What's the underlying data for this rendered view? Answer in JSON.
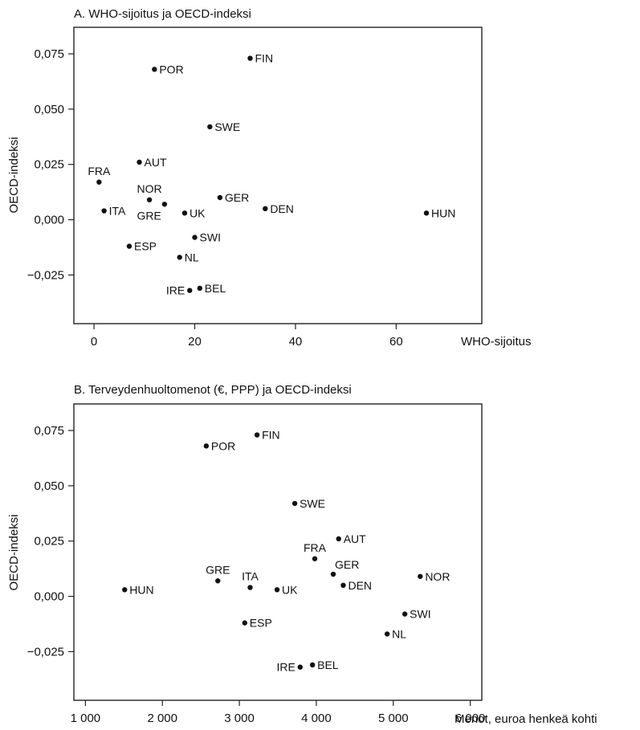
{
  "chart_data": [
    {
      "type": "scatter",
      "title": "A. WHO-sijoitus ja OECD-indeksi",
      "xlabel": "WHO-sijoitus",
      "ylabel": "OECD-indeksi",
      "xlim": [
        -4,
        77
      ],
      "ylim": [
        -0.047,
        0.087
      ],
      "x_ticks": [
        "0",
        "20",
        "40",
        "60"
      ],
      "x_tick_values": [
        0,
        20,
        40,
        60
      ],
      "y_ticks": [
        "0,075",
        "0,050",
        "0,025",
        "0,000",
        "−0,025"
      ],
      "y_tick_values": [
        0.075,
        0.05,
        0.025,
        0,
        -0.025
      ],
      "points": [
        {
          "label": "FIN",
          "x": 31,
          "y": 0.073,
          "anchor": "right"
        },
        {
          "label": "POR",
          "x": 12,
          "y": 0.068,
          "anchor": "right"
        },
        {
          "label": "SWE",
          "x": 23,
          "y": 0.042,
          "anchor": "right"
        },
        {
          "label": "AUT",
          "x": 9,
          "y": 0.026,
          "anchor": "right"
        },
        {
          "label": "FRA",
          "x": 1,
          "y": 0.017,
          "anchor": "above"
        },
        {
          "label": "NOR",
          "x": 11,
          "y": 0.009,
          "anchor": "above"
        },
        {
          "label": "GER",
          "x": 25,
          "y": 0.01,
          "anchor": "right"
        },
        {
          "label": "GRE",
          "x": 14,
          "y": 0.007,
          "anchor": "below-left"
        },
        {
          "label": "UK",
          "x": 18,
          "y": 0.003,
          "anchor": "right"
        },
        {
          "label": "DEN",
          "x": 34,
          "y": 0.005,
          "anchor": "right"
        },
        {
          "label": "ITA",
          "x": 2,
          "y": 0.004,
          "anchor": "right"
        },
        {
          "label": "HUN",
          "x": 66,
          "y": 0.003,
          "anchor": "right"
        },
        {
          "label": "SWI",
          "x": 20,
          "y": -0.008,
          "anchor": "right"
        },
        {
          "label": "ESP",
          "x": 7,
          "y": -0.012,
          "anchor": "right"
        },
        {
          "label": "NL",
          "x": 17,
          "y": -0.017,
          "anchor": "right"
        },
        {
          "label": "BEL",
          "x": 21,
          "y": -0.031,
          "anchor": "right"
        },
        {
          "label": "IRE",
          "x": 19,
          "y": -0.032,
          "anchor": "left"
        }
      ]
    },
    {
      "type": "scatter",
      "title": "B. Terveydenhuoltomenot (€, PPP) ja OECD-indeksi",
      "xlabel": "Menot, euroa henkeä kohti",
      "ylabel": "OECD-indeksi",
      "xlim": [
        850,
        6150
      ],
      "ylim": [
        -0.047,
        0.087
      ],
      "x_ticks": [
        "1 000",
        "2 000",
        "3 000",
        "4 000",
        "5 000",
        "6 000"
      ],
      "x_tick_values": [
        1000,
        2000,
        3000,
        4000,
        5000,
        6000
      ],
      "y_ticks": [
        "0,075",
        "0,050",
        "0,025",
        "0,000",
        "−0,025"
      ],
      "y_tick_values": [
        0.075,
        0.05,
        0.025,
        0,
        -0.025
      ],
      "points": [
        {
          "label": "FIN",
          "x": 3230,
          "y": 0.073,
          "anchor": "right"
        },
        {
          "label": "POR",
          "x": 2570,
          "y": 0.068,
          "anchor": "right"
        },
        {
          "label": "SWE",
          "x": 3720,
          "y": 0.042,
          "anchor": "right"
        },
        {
          "label": "AUT",
          "x": 4290,
          "y": 0.026,
          "anchor": "right"
        },
        {
          "label": "FRA",
          "x": 3980,
          "y": 0.017,
          "anchor": "above"
        },
        {
          "label": "GER",
          "x": 4220,
          "y": 0.01,
          "anchor": "above-right"
        },
        {
          "label": "NOR",
          "x": 5350,
          "y": 0.009,
          "anchor": "right"
        },
        {
          "label": "GRE",
          "x": 2720,
          "y": 0.007,
          "anchor": "above"
        },
        {
          "label": "DEN",
          "x": 4350,
          "y": 0.005,
          "anchor": "right"
        },
        {
          "label": "ITA",
          "x": 3140,
          "y": 0.004,
          "anchor": "above"
        },
        {
          "label": "UK",
          "x": 3490,
          "y": 0.003,
          "anchor": "right"
        },
        {
          "label": "HUN",
          "x": 1510,
          "y": 0.003,
          "anchor": "right"
        },
        {
          "label": "SWI",
          "x": 5150,
          "y": -0.008,
          "anchor": "right"
        },
        {
          "label": "ESP",
          "x": 3070,
          "y": -0.012,
          "anchor": "right"
        },
        {
          "label": "NL",
          "x": 4920,
          "y": -0.017,
          "anchor": "right"
        },
        {
          "label": "BEL",
          "x": 3950,
          "y": -0.031,
          "anchor": "right"
        },
        {
          "label": "IRE",
          "x": 3790,
          "y": -0.032,
          "anchor": "left"
        }
      ]
    }
  ]
}
